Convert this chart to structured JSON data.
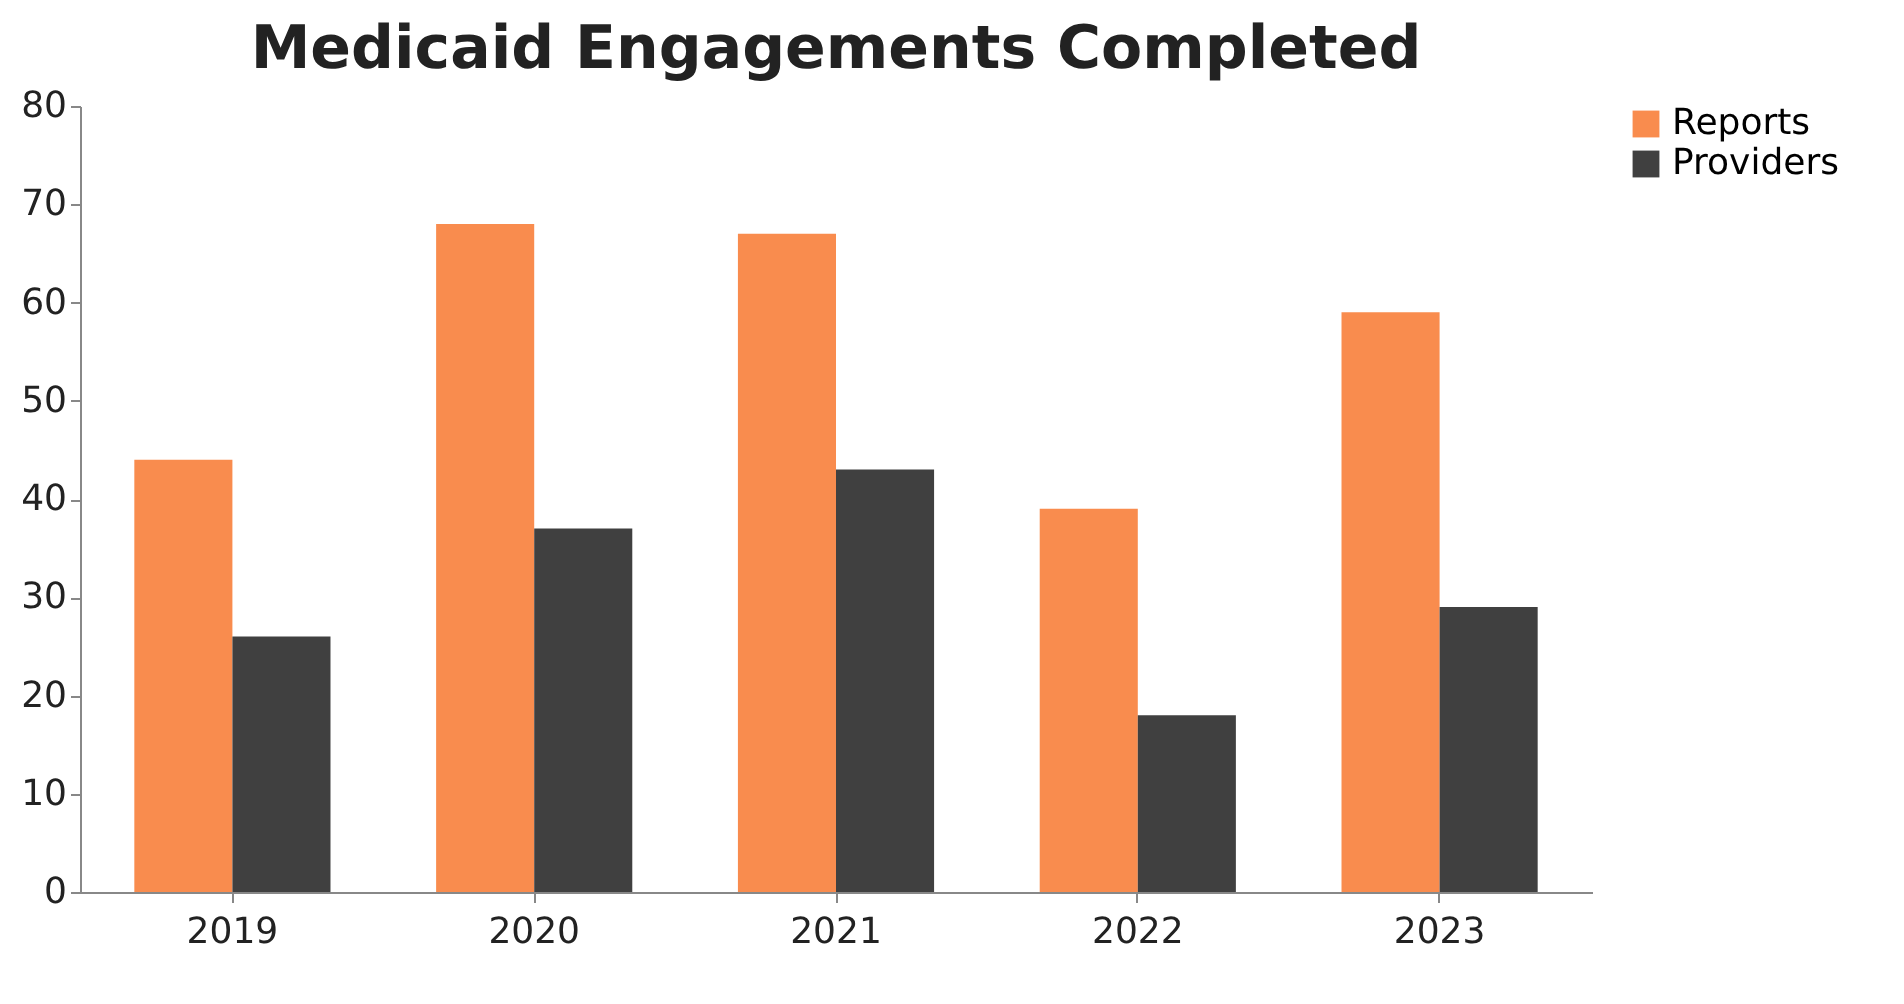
{
  "chart_data": {
    "type": "bar",
    "title": "Medicaid Engagements Completed",
    "categories": [
      "2019",
      "2020",
      "2021",
      "2022",
      "2023"
    ],
    "series": [
      {
        "name": "Reports",
        "color": "#f98c4e",
        "values": [
          44,
          68,
          67,
          39,
          59
        ]
      },
      {
        "name": "Providers",
        "color": "#404040",
        "values": [
          26,
          37,
          43,
          18,
          29
        ]
      }
    ],
    "ylim": [
      0,
      80
    ],
    "yticks": [
      0,
      10,
      20,
      30,
      40,
      50,
      60,
      70,
      80
    ],
    "grid": false,
    "legend": "right"
  }
}
